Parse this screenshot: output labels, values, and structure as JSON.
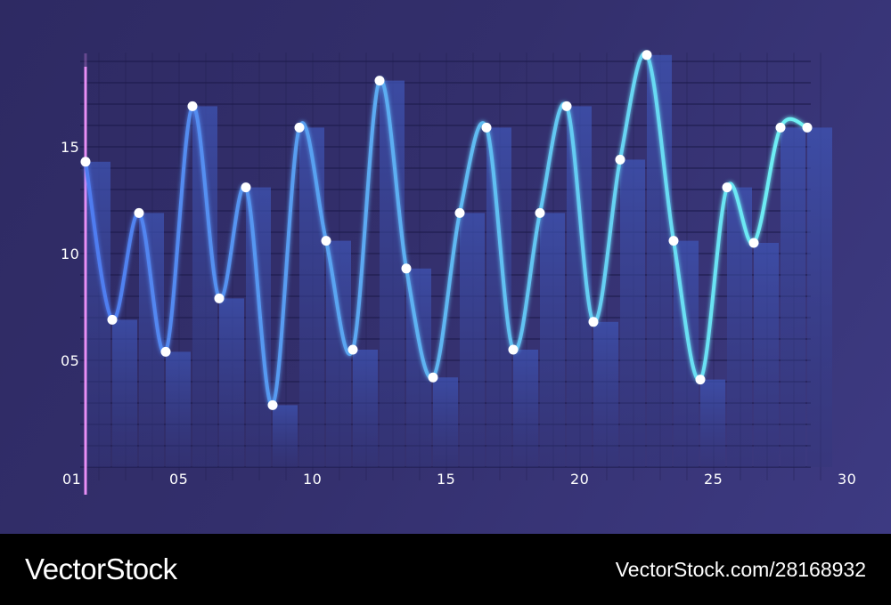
{
  "chart_data": {
    "type": "line",
    "title": "",
    "xlabel": "",
    "ylabel": "",
    "xlim": [
      1,
      28
    ],
    "ylim": [
      0,
      20
    ],
    "x_ticks": [
      "01",
      "05",
      "10",
      "15",
      "20",
      "25",
      "30"
    ],
    "y_ticks": [
      "05",
      "10",
      "15"
    ],
    "grid": true,
    "legend": "none",
    "x": [
      1,
      2,
      3,
      4,
      5,
      6,
      7,
      8,
      9,
      10,
      11,
      12,
      13,
      14,
      15,
      16,
      17,
      18,
      19,
      20,
      21,
      22,
      23,
      24,
      25,
      26,
      27,
      28
    ],
    "series": [
      {
        "type": "line",
        "values": [
          14.3,
          6.9,
          11.9,
          5.4,
          16.9,
          7.9,
          13.1,
          2.9,
          15.9,
          10.6,
          5.5,
          18.1,
          9.3,
          4.2,
          11.9,
          15.9,
          5.5,
          11.9,
          16.9,
          6.8,
          14.4,
          19.3,
          10.6,
          4.1,
          13.1,
          10.5,
          15.9,
          15.9
        ]
      },
      {
        "type": "bar",
        "values": [
          14.3,
          6.9,
          11.9,
          5.4,
          16.9,
          7.9,
          13.1,
          2.9,
          15.9,
          10.6,
          5.5,
          18.1,
          9.3,
          4.2,
          11.9,
          15.9,
          5.5,
          11.9,
          16.9,
          6.8,
          14.4,
          19.3,
          10.6,
          4.1,
          13.1,
          10.5,
          15.9,
          15.9
        ]
      }
    ],
    "colors": {
      "line_start": "#4f7bf0",
      "line_end": "#6ff3f4",
      "bar": "#3b4fa6",
      "axis": "#e98ff5",
      "point": "#ffffff",
      "background": "#312d6a"
    }
  },
  "watermark": {
    "brand": "VectorStock",
    "credit": "VectorStock.com/28168932"
  }
}
